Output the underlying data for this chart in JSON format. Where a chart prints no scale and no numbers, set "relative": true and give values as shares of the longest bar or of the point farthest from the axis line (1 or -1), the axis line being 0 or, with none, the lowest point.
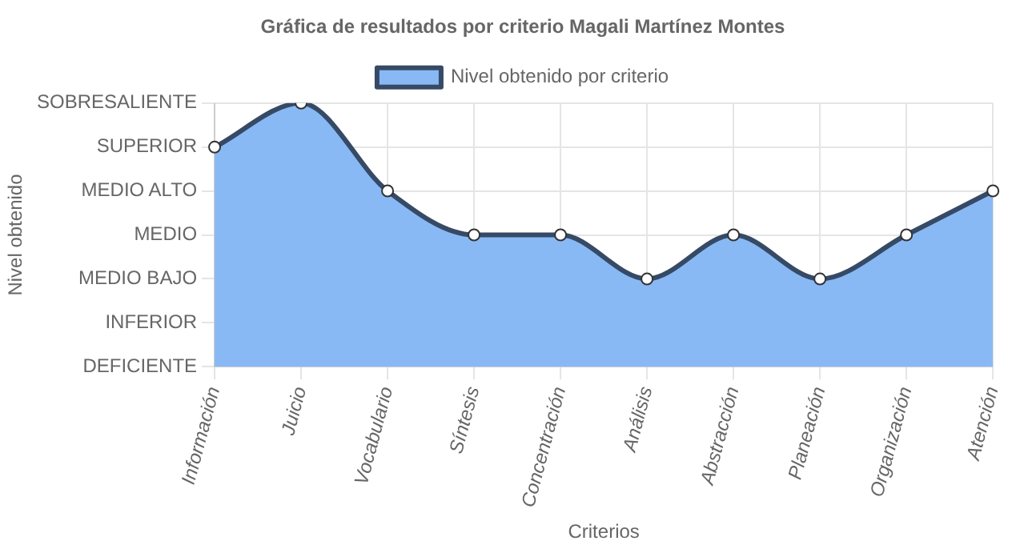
{
  "chart_data": {
    "type": "area",
    "title": "Gráfica de resultados por criterio Magali Martínez Montes",
    "xlabel": "Criterios",
    "annotations": [
      "Nivel obtenido"
    ],
    "categories": [
      "Información",
      "Juicio",
      "Vocabulario",
      "Síntesis",
      "Concentración",
      "Análisis",
      "Abstracción",
      "Planeación",
      "Organización",
      "Atención"
    ],
    "y_categories": [
      "SOBRESALIENTE",
      "SUPERIOR",
      "MEDIO ALTO",
      "MEDIO",
      "MEDIO BAJO",
      "INFERIOR",
      "DEFICIENTE"
    ],
    "relative": true,
    "series": [
      {
        "name": "Nivel obtenido por criterio",
        "color": "#88b9f5",
        "values": [
          0.833,
          1,
          0.667,
          0.5,
          0.5,
          0.333,
          0.5,
          0.333,
          0.5,
          0.667
        ]
      }
    ],
    "grid": true,
    "legend": "top",
    "marker": "circle",
    "line_style": "solid"
  }
}
